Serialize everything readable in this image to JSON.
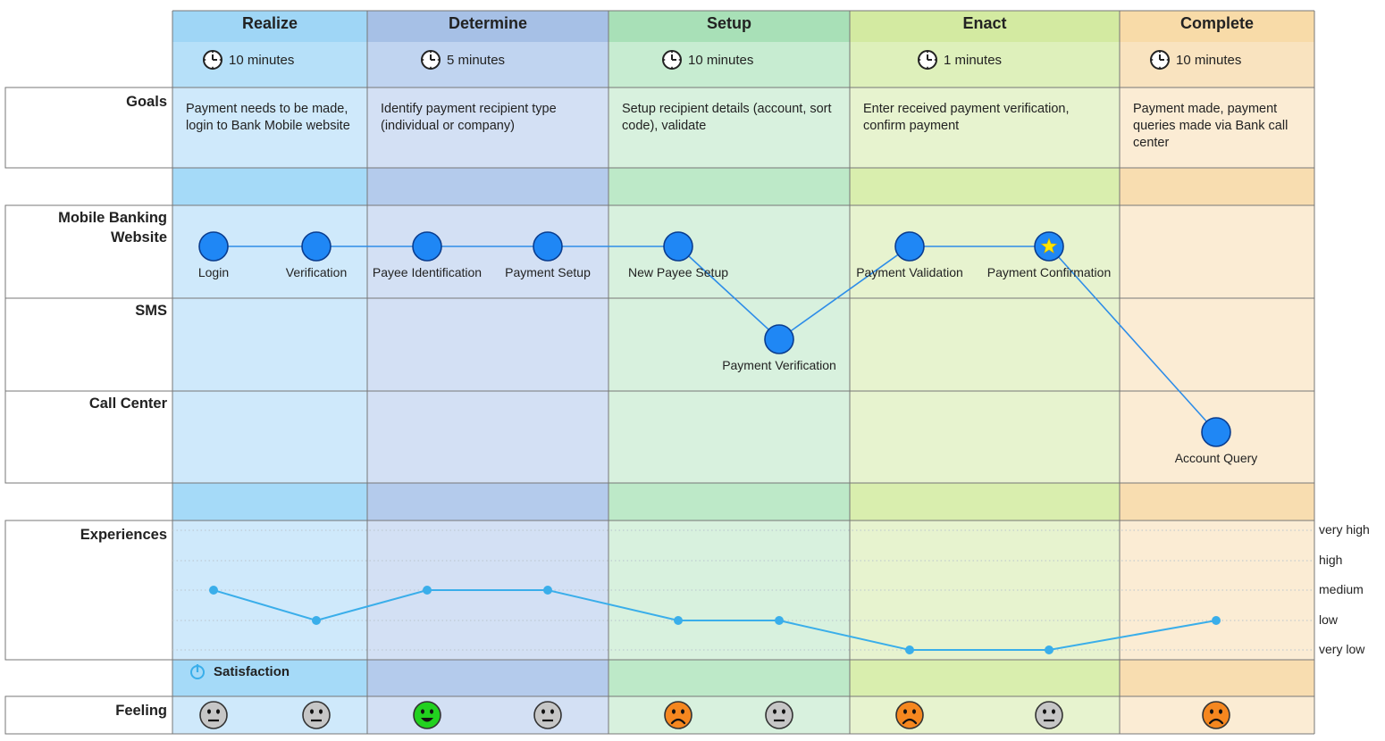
{
  "stages": [
    {
      "id": "realize",
      "title": "Realize",
      "duration": "10 minutes",
      "goal": "Payment needs to be made, login to Bank Mobile website",
      "bg": "#cfe9fb",
      "header_bg": "#9fd6f6",
      "band_bg": "#a5daf8"
    },
    {
      "id": "determine",
      "title": "Determine",
      "duration": "5 minutes",
      "goal": "Identify payment recipient type (individual or company)",
      "bg": "#d3e0f4",
      "header_bg": "#a6c0e6",
      "band_bg": "#b4cbec"
    },
    {
      "id": "setup",
      "title": "Setup",
      "duration": "10 minutes",
      "goal": "Setup recipient details (account, sort code), validate",
      "bg": "#d8f1de",
      "header_bg": "#a8e0b7",
      "band_bg": "#bde9c8"
    },
    {
      "id": "enact",
      "title": "Enact",
      "duration": "1 minutes",
      "goal": "Enter received payment verification, confirm payment",
      "bg": "#e7f3cf",
      "header_bg": "#d3eaa1",
      "band_bg": "#d9eeae"
    },
    {
      "id": "complete",
      "title": "Complete",
      "duration": "10 minutes",
      "goal": "Payment made, payment queries made via Bank call center",
      "bg": "#fbecd4",
      "header_bg": "#f8dba8",
      "band_bg": "#f8ddb0"
    }
  ],
  "rows": {
    "goals": "Goals",
    "channels": [
      {
        "id": "website",
        "label": "Mobile Banking Website"
      },
      {
        "id": "sms",
        "label": "SMS"
      },
      {
        "id": "call",
        "label": "Call Center"
      }
    ],
    "experiences": "Experiences",
    "feeling": "Feeling"
  },
  "touchpoints": [
    {
      "label": "Login",
      "channel": "website"
    },
    {
      "label": "Verification",
      "channel": "website"
    },
    {
      "label": "Payee Identification",
      "channel": "website"
    },
    {
      "label": "Payment Setup",
      "channel": "website"
    },
    {
      "label": "New Payee Setup",
      "channel": "website"
    },
    {
      "label": "Payment Verification",
      "channel": "sms"
    },
    {
      "label": "Payment Validation",
      "channel": "website"
    },
    {
      "label": "Payment Confirmation",
      "channel": "website",
      "star": true
    },
    {
      "label": "Account Query",
      "channel": "call"
    }
  ],
  "experience_levels": [
    "very high",
    "high",
    "medium",
    "low",
    "very low"
  ],
  "satisfaction": {
    "label": "Satisfaction",
    "values": [
      "medium",
      "low",
      "medium",
      "medium",
      "low",
      "low",
      "very low",
      "very low",
      "low"
    ]
  },
  "feelings": [
    "neutral",
    "neutral",
    "happy",
    "neutral",
    "sad",
    "neutral",
    "sad",
    "neutral",
    "sad"
  ],
  "colors": {
    "node": "#1f87f5",
    "node_stroke": "#0a3d8f",
    "path_line": "#2e8de8",
    "star": "#ffe600",
    "satisfaction_line": "#3aaeea",
    "happy": "#22d11f",
    "neutral": "#c6c6c6",
    "sad": "#f5871f"
  }
}
